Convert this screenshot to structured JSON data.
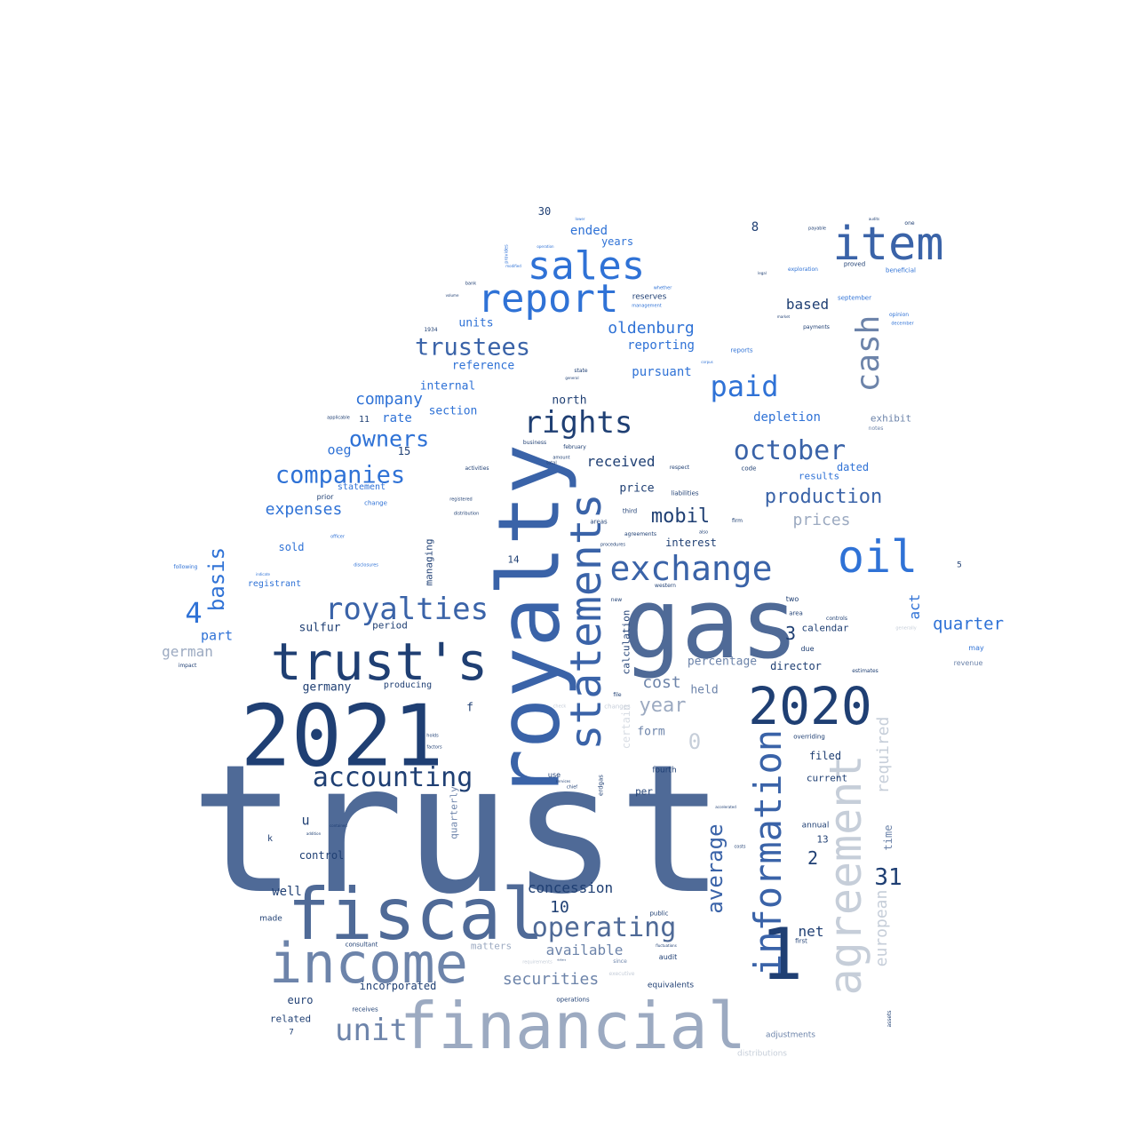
{
  "colors": {
    "navy": "#1f3f73",
    "slate": "#4f6a97",
    "steel": "#6d84aa",
    "pale": "#9caac1",
    "faint": "#c6ced9",
    "bright": "#2f72d6",
    "mid": "#3a63a8",
    "ghost": "#d8dde4"
  },
  "words": [
    {
      "t": "trust",
      "c": "slate"
    },
    {
      "t": "gas",
      "c": "slate"
    },
    {
      "t": "royalty",
      "c": "mid"
    },
    {
      "t": "2021",
      "c": "navy"
    },
    {
      "t": "financial",
      "c": "pale"
    },
    {
      "t": "fiscal",
      "c": "slate"
    },
    {
      "t": "1",
      "c": "navy"
    },
    {
      "t": "income",
      "c": "steel"
    },
    {
      "t": "trust's",
      "c": "navy"
    },
    {
      "t": "statements",
      "c": "mid"
    },
    {
      "t": "agreement",
      "c": "faint"
    },
    {
      "t": "information",
      "c": "mid"
    },
    {
      "t": "2020",
      "c": "navy"
    },
    {
      "t": "item",
      "c": "mid"
    },
    {
      "t": "sales",
      "c": "bright"
    },
    {
      "t": "report",
      "c": "bright"
    },
    {
      "t": "oil",
      "c": "bright"
    },
    {
      "t": "exchange",
      "c": "mid"
    },
    {
      "t": "cash",
      "c": "steel"
    },
    {
      "t": "royalties",
      "c": "mid"
    },
    {
      "t": "rights",
      "c": "navy"
    },
    {
      "t": "unit",
      "c": "steel"
    },
    {
      "t": "operating",
      "c": "slate"
    },
    {
      "t": "accounting",
      "c": "navy"
    },
    {
      "t": "paid",
      "c": "bright"
    },
    {
      "t": "october",
      "c": "mid"
    },
    {
      "t": "trustees",
      "c": "mid"
    },
    {
      "t": "companies",
      "c": "bright"
    },
    {
      "t": "owners",
      "c": "bright"
    },
    {
      "t": "4",
      "c": "bright"
    },
    {
      "t": "basis",
      "c": "bright"
    },
    {
      "t": "average",
      "c": "mid"
    },
    {
      "t": "31",
      "c": "navy"
    },
    {
      "t": "production",
      "c": "mid"
    },
    {
      "t": "year",
      "c": "pale"
    },
    {
      "t": "mobil",
      "c": "navy"
    },
    {
      "t": "0",
      "c": "faint"
    },
    {
      "t": "european",
      "c": "faint"
    },
    {
      "t": "required",
      "c": "faint"
    },
    {
      "t": "company",
      "c": "bright"
    },
    {
      "t": "securities",
      "c": "steel"
    },
    {
      "t": "oldenburg",
      "c": "bright"
    },
    {
      "t": "quarter",
      "c": "bright"
    },
    {
      "t": "expenses",
      "c": "bright"
    },
    {
      "t": "prices",
      "c": "pale"
    },
    {
      "t": "cost",
      "c": "steel"
    },
    {
      "t": "10",
      "c": "navy"
    },
    {
      "t": "2",
      "c": "navy"
    },
    {
      "t": "3",
      "c": "navy"
    },
    {
      "t": "available",
      "c": "steel"
    },
    {
      "t": "concession",
      "c": "navy"
    },
    {
      "t": "received",
      "c": "navy"
    },
    {
      "t": "net",
      "c": "navy"
    },
    {
      "t": "german",
      "c": "pale"
    },
    {
      "t": "ended",
      "c": "bright"
    },
    {
      "t": "based",
      "c": "navy"
    },
    {
      "t": "act",
      "c": "bright"
    },
    {
      "t": "part",
      "c": "bright"
    },
    {
      "t": "oeg",
      "c": "bright"
    },
    {
      "t": "rate",
      "c": "bright"
    },
    {
      "t": "depletion",
      "c": "bright"
    },
    {
      "t": "reporting",
      "c": "bright"
    },
    {
      "t": "pursuant",
      "c": "bright"
    },
    {
      "t": "reference",
      "c": "bright"
    },
    {
      "t": "internal",
      "c": "bright"
    },
    {
      "t": "section",
      "c": "bright"
    },
    {
      "t": "units",
      "c": "bright"
    },
    {
      "t": "years",
      "c": "bright"
    },
    {
      "t": "north",
      "c": "navy"
    },
    {
      "t": "price",
      "c": "navy"
    },
    {
      "t": "interest",
      "c": "navy"
    },
    {
      "t": "germany",
      "c": "navy"
    },
    {
      "t": "sulfur",
      "c": "navy"
    },
    {
      "t": "period",
      "c": "navy"
    },
    {
      "t": "percentage",
      "c": "steel"
    },
    {
      "t": "held",
      "c": "steel"
    },
    {
      "t": "form",
      "c": "steel"
    },
    {
      "t": "director",
      "c": "navy"
    },
    {
      "t": "calendar",
      "c": "navy"
    },
    {
      "t": "filed",
      "c": "navy"
    },
    {
      "t": "current",
      "c": "navy"
    },
    {
      "t": "dated",
      "c": "bright"
    },
    {
      "t": "results",
      "c": "bright"
    },
    {
      "t": "exhibit",
      "c": "steel"
    },
    {
      "t": "time",
      "c": "steel"
    },
    {
      "t": "well",
      "c": "navy"
    },
    {
      "t": "control",
      "c": "navy"
    },
    {
      "t": "euro",
      "c": "navy"
    },
    {
      "t": "related",
      "c": "navy"
    },
    {
      "t": "incorporated",
      "c": "navy"
    },
    {
      "t": "matters",
      "c": "pale"
    },
    {
      "t": "sold",
      "c": "bright"
    },
    {
      "t": "registrant",
      "c": "bright"
    },
    {
      "t": "statement",
      "c": "bright"
    },
    {
      "t": "producing",
      "c": "navy"
    },
    {
      "t": "managing",
      "c": "navy"
    },
    {
      "t": "calculation",
      "c": "navy"
    },
    {
      "t": "quarterly",
      "c": "steel"
    },
    {
      "t": "certain",
      "c": "ghost"
    },
    {
      "t": "14",
      "c": "navy"
    },
    {
      "t": "15",
      "c": "navy"
    },
    {
      "t": "30",
      "c": "navy"
    },
    {
      "t": "8",
      "c": "navy"
    },
    {
      "t": "f",
      "c": "navy"
    },
    {
      "t": "u",
      "c": "navy"
    },
    {
      "t": "k",
      "c": "navy"
    },
    {
      "t": "7",
      "c": "navy"
    },
    {
      "t": "13",
      "c": "navy"
    },
    {
      "t": "11",
      "c": "navy"
    },
    {
      "t": "5",
      "c": "navy"
    },
    {
      "t": "made",
      "c": "navy"
    },
    {
      "t": "per",
      "c": "navy"
    },
    {
      "t": "fourth",
      "c": "navy"
    },
    {
      "t": "annual",
      "c": "navy"
    },
    {
      "t": "two",
      "c": "navy"
    },
    {
      "t": "due",
      "c": "navy"
    },
    {
      "t": "audit",
      "c": "navy"
    },
    {
      "t": "use",
      "c": "navy"
    },
    {
      "t": "first",
      "c": "navy"
    },
    {
      "t": "revenue",
      "c": "steel"
    },
    {
      "t": "may",
      "c": "bright"
    },
    {
      "t": "adjustments",
      "c": "steel"
    },
    {
      "t": "distributions",
      "c": "faint"
    },
    {
      "t": "equivalents",
      "c": "navy"
    },
    {
      "t": "operations",
      "c": "navy"
    },
    {
      "t": "consultant",
      "c": "navy"
    },
    {
      "t": "receives",
      "c": "navy"
    },
    {
      "t": "public",
      "c": "navy"
    },
    {
      "t": "overriding",
      "c": "navy"
    },
    {
      "t": "estimates",
      "c": "navy"
    },
    {
      "t": "area",
      "c": "navy"
    },
    {
      "t": "controls",
      "c": "navy"
    },
    {
      "t": "new",
      "c": "navy"
    },
    {
      "t": "western",
      "c": "navy"
    },
    {
      "t": "third",
      "c": "navy"
    },
    {
      "t": "agreements",
      "c": "navy"
    },
    {
      "t": "areas",
      "c": "navy"
    },
    {
      "t": "liabilities",
      "c": "navy"
    },
    {
      "t": "respect",
      "c": "navy"
    },
    {
      "t": "code",
      "c": "navy"
    },
    {
      "t": "firm",
      "c": "navy"
    },
    {
      "t": "also",
      "c": "navy"
    },
    {
      "t": "file",
      "c": "navy"
    },
    {
      "t": "changes",
      "c": "faint"
    },
    {
      "t": "check",
      "c": "faint"
    },
    {
      "t": "since",
      "c": "steel"
    },
    {
      "t": "executive",
      "c": "faint"
    },
    {
      "t": "requirements",
      "c": "faint"
    },
    {
      "t": "change",
      "c": "bright"
    },
    {
      "t": "prior",
      "c": "navy"
    },
    {
      "t": "activities",
      "c": "navy"
    },
    {
      "t": "registered",
      "c": "navy"
    },
    {
      "t": "distribution",
      "c": "navy"
    },
    {
      "t": "business",
      "c": "navy"
    },
    {
      "t": "total",
      "c": "navy"
    },
    {
      "t": "amount",
      "c": "navy"
    },
    {
      "t": "february",
      "c": "navy"
    },
    {
      "t": "state",
      "c": "navy"
    },
    {
      "t": "general",
      "c": "navy"
    },
    {
      "t": "reserves",
      "c": "navy"
    },
    {
      "t": "whether",
      "c": "bright"
    },
    {
      "t": "management",
      "c": "bright"
    },
    {
      "t": "reports",
      "c": "bright"
    },
    {
      "t": "corpus",
      "c": "bright"
    },
    {
      "t": "exploration",
      "c": "bright"
    },
    {
      "t": "beneficial",
      "c": "bright"
    },
    {
      "t": "proved",
      "c": "navy"
    },
    {
      "t": "payable",
      "c": "navy"
    },
    {
      "t": "audits",
      "c": "navy"
    },
    {
      "t": "one",
      "c": "navy"
    },
    {
      "t": "legal",
      "c": "navy"
    },
    {
      "t": "september",
      "c": "bright"
    },
    {
      "t": "opinion",
      "c": "bright"
    },
    {
      "t": "december",
      "c": "bright"
    },
    {
      "t": "payments",
      "c": "navy"
    },
    {
      "t": "market",
      "c": "navy"
    },
    {
      "t": "notes",
      "c": "steel"
    },
    {
      "t": "generally",
      "c": "faint"
    },
    {
      "t": "following",
      "c": "bright"
    },
    {
      "t": "disclosures",
      "c": "bright"
    },
    {
      "t": "officer",
      "c": "bright"
    },
    {
      "t": "impact",
      "c": "navy"
    },
    {
      "t": "bank",
      "c": "navy"
    },
    {
      "t": "lower",
      "c": "bright"
    },
    {
      "t": "operation",
      "c": "bright"
    },
    {
      "t": "provides",
      "c": "bright"
    },
    {
      "t": "modified",
      "c": "bright"
    },
    {
      "t": "volume",
      "c": "navy"
    },
    {
      "t": "procedures",
      "c": "navy"
    },
    {
      "t": "costs",
      "c": "navy"
    },
    {
      "t": "accelerated",
      "c": "navy"
    },
    {
      "t": "assets",
      "c": "navy"
    },
    {
      "t": "applicable",
      "c": "navy"
    },
    {
      "t": "holds",
      "c": "navy"
    },
    {
      "t": "factors",
      "c": "navy"
    },
    {
      "t": "services",
      "c": "navy"
    },
    {
      "t": "chief",
      "c": "navy"
    },
    {
      "t": "erdgas",
      "c": "navy"
    },
    {
      "t": "contained",
      "c": "navy"
    },
    {
      "t": "addition",
      "c": "navy"
    },
    {
      "t": "indicate",
      "c": "bright"
    },
    {
      "t": "fluctuations",
      "c": "navy"
    },
    {
      "t": "dollars",
      "c": "navy"
    },
    {
      "t": "1934",
      "c": "navy"
    }
  ]
}
